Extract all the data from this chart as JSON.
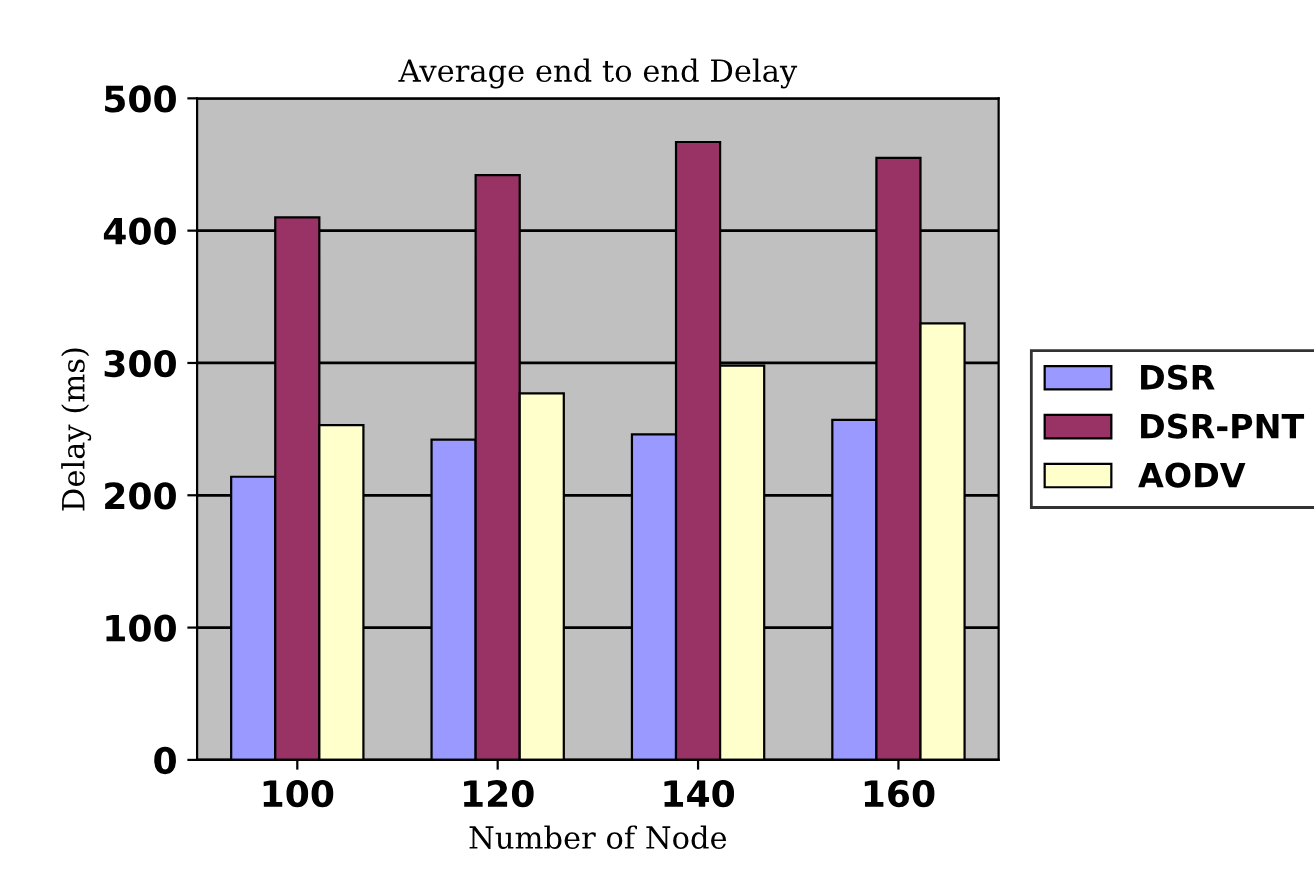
{
  "chart_data": {
    "type": "bar",
    "title": "Average end to end Delay",
    "xlabel": "Number of Node",
    "ylabel": "Delay (ms)",
    "categories": [
      "100",
      "120",
      "140",
      "160"
    ],
    "series": [
      {
        "name": "DSR",
        "color": "#9999ff",
        "values": [
          214,
          242,
          246,
          257
        ]
      },
      {
        "name": "DSR-PNT",
        "color": "#993366",
        "values": [
          410,
          442,
          467,
          455
        ]
      },
      {
        "name": "AODV",
        "color": "#ffffcc",
        "values": [
          253,
          277,
          298,
          330
        ]
      }
    ],
    "ylim": [
      0,
      500
    ],
    "yticks": [
      0,
      100,
      200,
      300,
      400,
      500
    ],
    "grid": "y",
    "legend": "right"
  }
}
